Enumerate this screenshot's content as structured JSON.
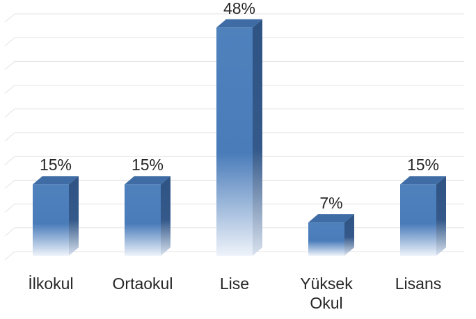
{
  "chart_data": {
    "type": "bar3d",
    "categories": [
      "İlkokul",
      "Ortaokul",
      "Lise",
      "Yüksek Okul",
      "Lisans"
    ],
    "values": [
      15,
      15,
      48,
      7,
      15
    ],
    "value_labels": [
      "15%",
      "15%",
      "48%",
      "7%",
      "15%"
    ],
    "color": "#4f81bd",
    "ylim": [
      0,
      50
    ],
    "yticks": [
      0,
      5,
      10,
      15,
      20,
      25,
      30,
      35,
      40,
      45,
      50
    ],
    "grid": true
  }
}
